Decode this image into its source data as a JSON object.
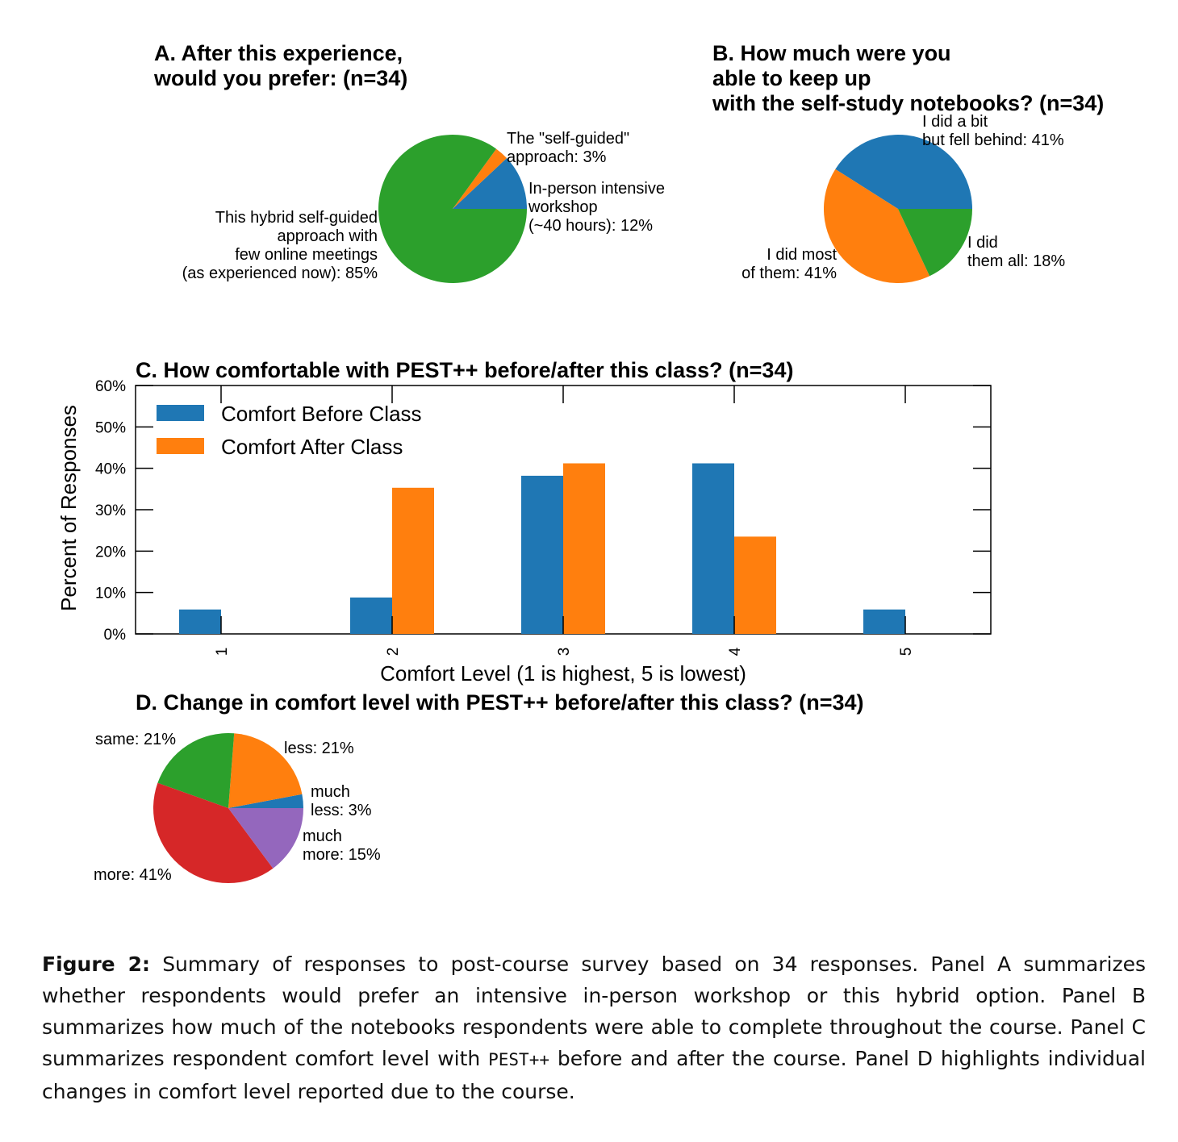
{
  "chart_data": [
    {
      "type": "pie",
      "title": "A. After this experience,\nwould you prefer: (n=34)",
      "slices": [
        {
          "label": "In-person intensive\nworkshop\n(~40 hours): 12%",
          "value": 12,
          "color": "#1f77b4"
        },
        {
          "label": "The \"self-guided\"\napproach: 3%",
          "value": 3,
          "color": "#ff7f0e"
        },
        {
          "label": "This hybrid self-guided\napproach with\nfew online meetings\n(as experienced now): 85%",
          "value": 85,
          "color": "#2ca02c"
        }
      ]
    },
    {
      "type": "pie",
      "title": "B. How much were you\nable to keep up\nwith the self-study notebooks? (n=34)",
      "slices": [
        {
          "label": "I did a bit\nbut fell behind: 41%",
          "value": 41,
          "color": "#1f77b4"
        },
        {
          "label": "I did most\nof them: 41%",
          "value": 41,
          "color": "#ff7f0e"
        },
        {
          "label": "I did\nthem all: 18%",
          "value": 18,
          "color": "#2ca02c"
        }
      ]
    },
    {
      "type": "bar",
      "title": "C. How comfortable with PEST++ before/after this class? (n=34)",
      "categories": [
        "1",
        "2",
        "3",
        "4",
        "5"
      ],
      "series": [
        {
          "name": "Comfort Before Class",
          "values": [
            5.9,
            8.8,
            38.2,
            41.2,
            5.9
          ],
          "color": "#1f77b4"
        },
        {
          "name": "Comfort After Class",
          "values": [
            0,
            35.3,
            41.2,
            23.5,
            0
          ],
          "color": "#ff7f0e"
        }
      ],
      "xlabel": "Comfort Level (1 is highest, 5 is lowest)",
      "ylabel": "Percent of Responses",
      "ylim": [
        0,
        60
      ],
      "yticks": [
        "0%",
        "10%",
        "20%",
        "30%",
        "40%",
        "50%",
        "60%"
      ],
      "legend": "top-left",
      "grid": false
    },
    {
      "type": "pie",
      "title": "D. Change in comfort level with PEST++ before/after this class? (n=34)",
      "slices": [
        {
          "label": "much\nless: 3%",
          "value": 3,
          "color": "#1f77b4"
        },
        {
          "label": "less: 21%",
          "value": 21,
          "color": "#ff7f0e"
        },
        {
          "label": "same: 21%",
          "value": 21,
          "color": "#2ca02c"
        },
        {
          "label": "more: 41%",
          "value": 41,
          "color": "#d62728"
        },
        {
          "label": "much\nmore: 15%",
          "value": 15,
          "color": "#9467bd"
        }
      ]
    }
  ],
  "caption": {
    "label": "Figure 2:",
    "part1": "Summary of responses to post-course survey based on 34 responses. Panel A summarizes whether respondents would prefer an intensive in-person workshop or this hybrid option. Panel B summarizes how much of the notebooks respondents were able to complete throughout the course. Panel C summarizes respondent comfort level with",
    "code": "PEST++",
    "part2": "before and after the course. Panel D highlights individual changes in comfort level reported due to the course."
  }
}
